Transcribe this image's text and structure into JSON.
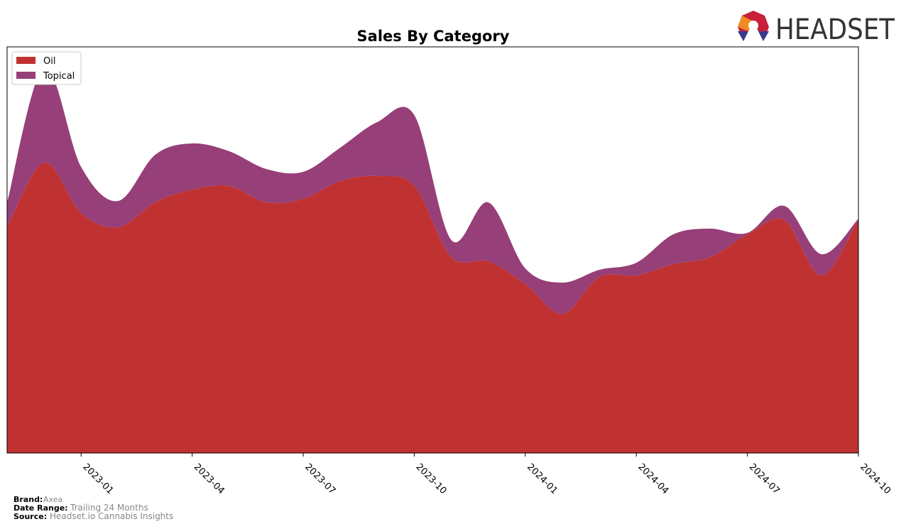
{
  "brand_logo": "HEADSET",
  "chart_data": {
    "type": "stacked-area",
    "title": "Sales By Category",
    "x": [
      "2022-11",
      "2022-12",
      "2023-01",
      "2023-02",
      "2023-03",
      "2023-04",
      "2023-05",
      "2023-06",
      "2023-07",
      "2023-08",
      "2023-09",
      "2023-10",
      "2023-11",
      "2023-12",
      "2024-01",
      "2024-02",
      "2024-03",
      "2024-04",
      "2024-05",
      "2024-06",
      "2024-07",
      "2024-08",
      "2024-09",
      "2024-10"
    ],
    "xlim": [
      "2022-11",
      "2024-10"
    ],
    "xticks": [
      "2023-01",
      "2023-04",
      "2023-07",
      "2023-10",
      "2024-01",
      "2024-04",
      "2024-07",
      "2024-10"
    ],
    "ylim": [
      0,
      572
    ],
    "series": [
      {
        "name": "Oil",
        "color": "#c03232",
        "values": [
          318,
          409,
          338,
          318,
          353,
          371,
          376,
          353,
          358,
          383,
          390,
          376,
          276,
          270,
          238,
          196,
          248,
          250,
          266,
          276,
          308,
          328,
          250,
          330
        ]
      },
      {
        "name": "Topical",
        "color": "#963f78",
        "values": [
          35,
          134,
          65,
          37,
          67,
          65,
          49,
          47,
          38,
          47,
          76,
          100,
          24,
          83,
          22,
          44,
          10,
          18,
          42,
          40,
          2,
          20,
          30,
          0
        ]
      }
    ],
    "legend": "upper left"
  },
  "footer": {
    "brand_label": "Brand:",
    "brand": "Axea",
    "date_label": "Date Range:",
    "date": "Trailing 24 Months",
    "source_label": "Source:",
    "source": "Headset.io Cannabis Insights"
  }
}
